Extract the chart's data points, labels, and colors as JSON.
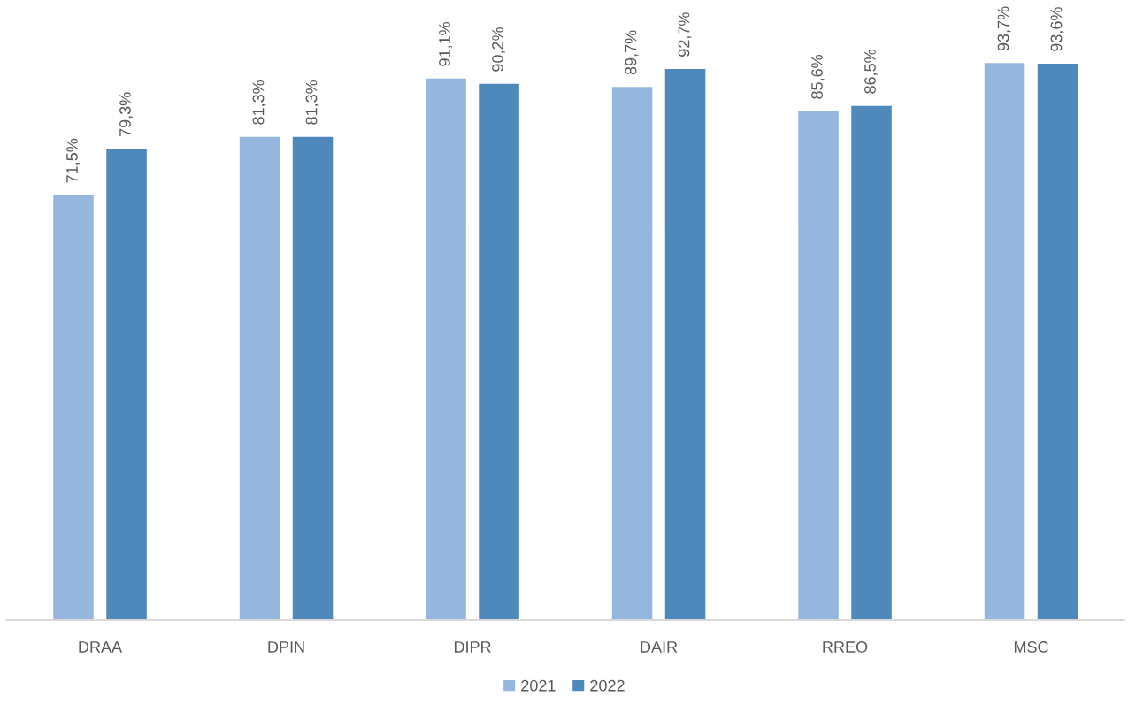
{
  "chart_data": {
    "type": "bar",
    "categories": [
      "DRAA",
      "DPIN",
      "DIPR",
      "DAIR",
      "RREO",
      "MSC"
    ],
    "series": [
      {
        "name": "2021",
        "color": "#95b7de",
        "values": [
          71.5,
          81.3,
          91.1,
          89.7,
          85.6,
          93.7
        ],
        "value_labels": [
          "71,5%",
          "81,3%",
          "91,1%",
          "89,7%",
          "85,6%",
          "93,7%"
        ]
      },
      {
        "name": "2022",
        "color": "#4f88bb",
        "values": [
          79.3,
          81.3,
          90.2,
          92.7,
          86.5,
          93.6
        ],
        "value_labels": [
          "79,3%",
          "81,3%",
          "90,2%",
          "92,7%",
          "86,5%",
          "93,6%"
        ]
      }
    ],
    "legend": "bottom",
    "tick_labels": "x"
  }
}
